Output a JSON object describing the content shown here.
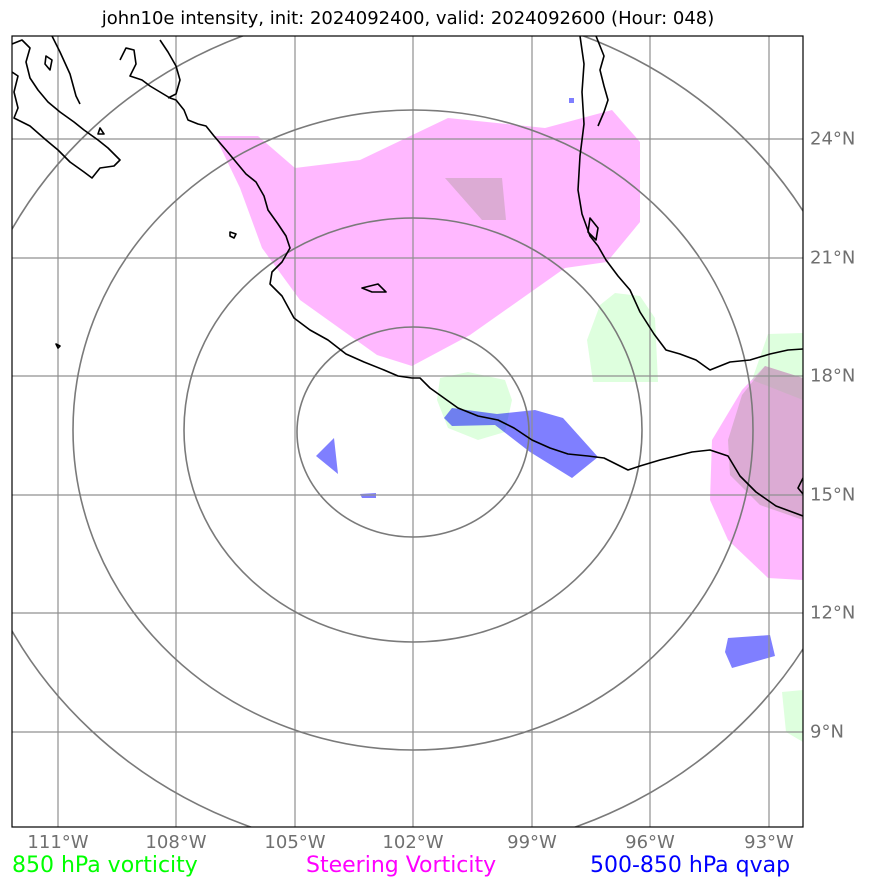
{
  "title": "john10e intensity, init: 2024092400, valid: 2024092600 (Hour: 048)",
  "longitude_labels": [
    "111°W",
    "108°W",
    "105°W",
    "102°W",
    "99°W",
    "96°W",
    "93°W"
  ],
  "latitude_labels": [
    "24°N",
    "21°N",
    "18°N",
    "15°N",
    "12°N",
    "9°N"
  ],
  "legend": {
    "vorticity_850": "850 hPa vorticity",
    "steering_vorticity": "Steering Vorticity",
    "qvap_500_850": "500-850 hPa qvap"
  },
  "colors": {
    "vorticity_850": "#00ff00",
    "steering_vorticity": "#ff00ff",
    "qvap_500_850": "#0000ff",
    "grid": "#808080",
    "coastline": "#000000"
  },
  "range_rings": 4
}
